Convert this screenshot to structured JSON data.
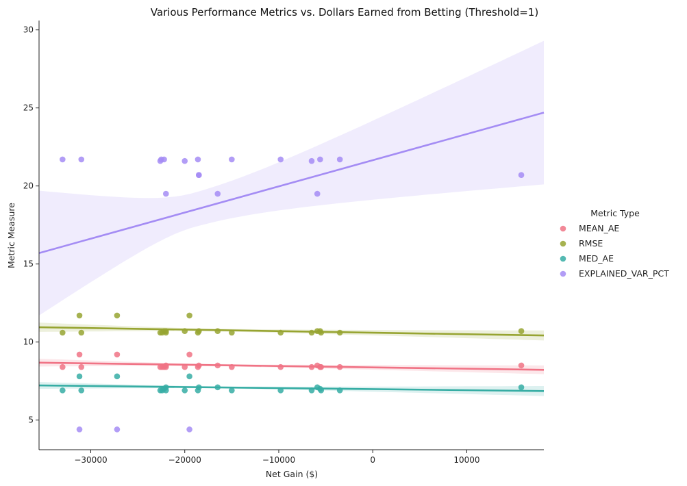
{
  "chart_data": {
    "type": "scatter",
    "title": "Various Performance Metrics vs. Dollars Earned from Betting (Threshold=1)",
    "xlabel": "Net Gain ($)",
    "ylabel": "Metric Measure",
    "xlim": [
      -35500,
      18200
    ],
    "ylim": [
      3.1,
      30.6
    ],
    "x_ticks": [
      -30000,
      -20000,
      -10000,
      0,
      10000
    ],
    "y_ticks": [
      5,
      10,
      15,
      20,
      25,
      30
    ],
    "grid": false,
    "legend": {
      "title": "Metric Type",
      "placement": "right"
    },
    "series": [
      {
        "name": "MEAN_AE",
        "color": "#f07385",
        "x": [
          -33000,
          -31200,
          -31000,
          -27200,
          -22600,
          -22400,
          -22200,
          -22000,
          -22000,
          -19500,
          -20000,
          -18600,
          -18500,
          -16500,
          -15000,
          -9800,
          -6500,
          -5900,
          -5600,
          -5500,
          -3500,
          15800
        ],
        "y": [
          8.4,
          9.2,
          8.4,
          9.2,
          8.4,
          8.4,
          8.4,
          8.4,
          8.5,
          9.2,
          8.4,
          8.4,
          8.5,
          8.5,
          8.4,
          8.4,
          8.4,
          8.5,
          8.4,
          8.4,
          8.4,
          8.5
        ],
        "fit": {
          "y_start": 8.68,
          "y_end": 8.22,
          "ci_start": 0.25,
          "ci_end": 0.28
        }
      },
      {
        "name": "RMSE",
        "color": "#97a431",
        "x": [
          -33000,
          -31200,
          -31000,
          -27200,
          -22600,
          -22400,
          -22200,
          -22000,
          -22000,
          -19500,
          -20000,
          -18600,
          -18500,
          -16500,
          -15000,
          -9800,
          -6500,
          -5900,
          -5600,
          -5500,
          -3500,
          15800
        ],
        "y": [
          10.6,
          11.7,
          10.6,
          11.7,
          10.6,
          10.6,
          10.7,
          10.6,
          10.7,
          11.7,
          10.7,
          10.6,
          10.7,
          10.7,
          10.6,
          10.6,
          10.6,
          10.7,
          10.7,
          10.6,
          10.6,
          10.7
        ],
        "fit": {
          "y_start": 10.95,
          "y_end": 10.42,
          "ci_start": 0.3,
          "ci_end": 0.32
        }
      },
      {
        "name": "MED_AE",
        "color": "#36ada4",
        "x": [
          -33000,
          -31200,
          -31000,
          -27200,
          -22600,
          -22400,
          -22200,
          -22000,
          -22000,
          -19500,
          -20000,
          -18600,
          -18500,
          -16500,
          -15000,
          -9800,
          -6500,
          -5900,
          -5600,
          -5500,
          -3500,
          15800
        ],
        "y": [
          6.9,
          7.8,
          6.9,
          7.8,
          6.9,
          6.9,
          7.0,
          6.9,
          7.1,
          7.8,
          6.9,
          6.9,
          7.1,
          7.1,
          6.9,
          6.9,
          6.9,
          7.1,
          7.0,
          6.9,
          6.9,
          7.1
        ],
        "fit": {
          "y_start": 7.22,
          "y_end": 6.86,
          "ci_start": 0.22,
          "ci_end": 0.32
        }
      },
      {
        "name": "EXPLAINED_VAR_PCT",
        "color": "#a48cf4",
        "x": [
          -33000,
          -31200,
          -31000,
          -27200,
          -22600,
          -22500,
          -22200,
          -22000,
          -19500,
          -20000,
          -18600,
          -18500,
          -18500,
          -16500,
          -15000,
          -9800,
          -6500,
          -5900,
          -5600,
          -3500,
          15800
        ],
        "y": [
          21.7,
          4.4,
          21.7,
          4.4,
          21.6,
          21.7,
          21.7,
          19.5,
          4.4,
          21.6,
          21.7,
          20.7,
          20.7,
          19.5,
          21.7,
          21.7,
          21.6,
          19.5,
          21.7,
          21.7,
          20.7
        ],
        "fit": {
          "y_start": 15.7,
          "y_end": 24.7,
          "ci_start": 4.0,
          "ci_end": 4.6,
          "ci_min": 1.1,
          "ci_min_x": -19000
        }
      }
    ]
  }
}
